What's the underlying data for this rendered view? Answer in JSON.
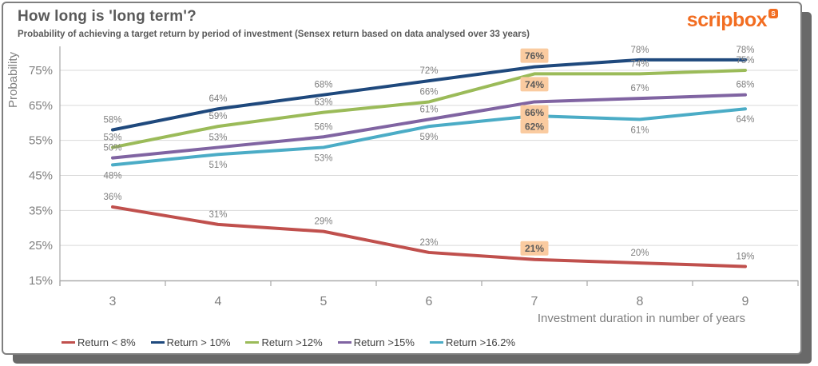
{
  "card": {
    "title": "How long is 'long term'?",
    "subtitle": "Probability of achieving a target return by period of investment (Sensex return based on data analysed over 33 years)",
    "logo_text": "scripbox",
    "logo_mark_glyph": "S",
    "brand_color": "#F26D21"
  },
  "chart_data": {
    "type": "line",
    "title": "How long is 'long term'?",
    "subtitle": "Probability of achieving a target return by period of investment (Sensex return based on data analysed over 33 years)",
    "xlabel": "Investment duration in number of years",
    "ylabel": "Probability",
    "x": [
      3,
      4,
      5,
      6,
      7,
      8,
      9
    ],
    "y_ticks": [
      15,
      25,
      35,
      45,
      55,
      65,
      75
    ],
    "y_tick_suffix": "%",
    "ylim": [
      15,
      81
    ],
    "grid": "horizontal",
    "legend_position": "bottom",
    "series": [
      {
        "name": "Return < 8%",
        "color": "#C0504D",
        "values": [
          36,
          31,
          29,
          23,
          21,
          20,
          19
        ],
        "label_side": "above",
        "highlight_side": "above"
      },
      {
        "name": "Return > 10%",
        "color": "#1F497D",
        "values": [
          58,
          64,
          68,
          72,
          76,
          78,
          78
        ],
        "label_side": "above",
        "highlight_side": "above"
      },
      {
        "name": "Return >12%",
        "color": "#9BBB59",
        "values": [
          53,
          59,
          63,
          66,
          74,
          74,
          75
        ],
        "label_side": "above",
        "highlight_side": "below"
      },
      {
        "name": "Return >15%",
        "color": "#8064A2",
        "values": [
          50,
          53,
          56,
          61,
          66,
          67,
          68
        ],
        "label_side": "above",
        "highlight_side": "below"
      },
      {
        "name": "Return >16.2%",
        "color": "#4BACC6",
        "values": [
          48,
          51,
          53,
          59,
          62,
          61,
          64
        ],
        "label_side": "below",
        "highlight_side": "below"
      }
    ],
    "highlight": {
      "x": 7,
      "bg": "#FACBA0",
      "text_color": "#5A5A5A"
    },
    "label_suffix": "%",
    "label_color": "#7f7f7f",
    "axis_color": "#A6A6A6",
    "gridline_color": "#D9D9D9",
    "tick_label_color": "#7f7f7f"
  }
}
